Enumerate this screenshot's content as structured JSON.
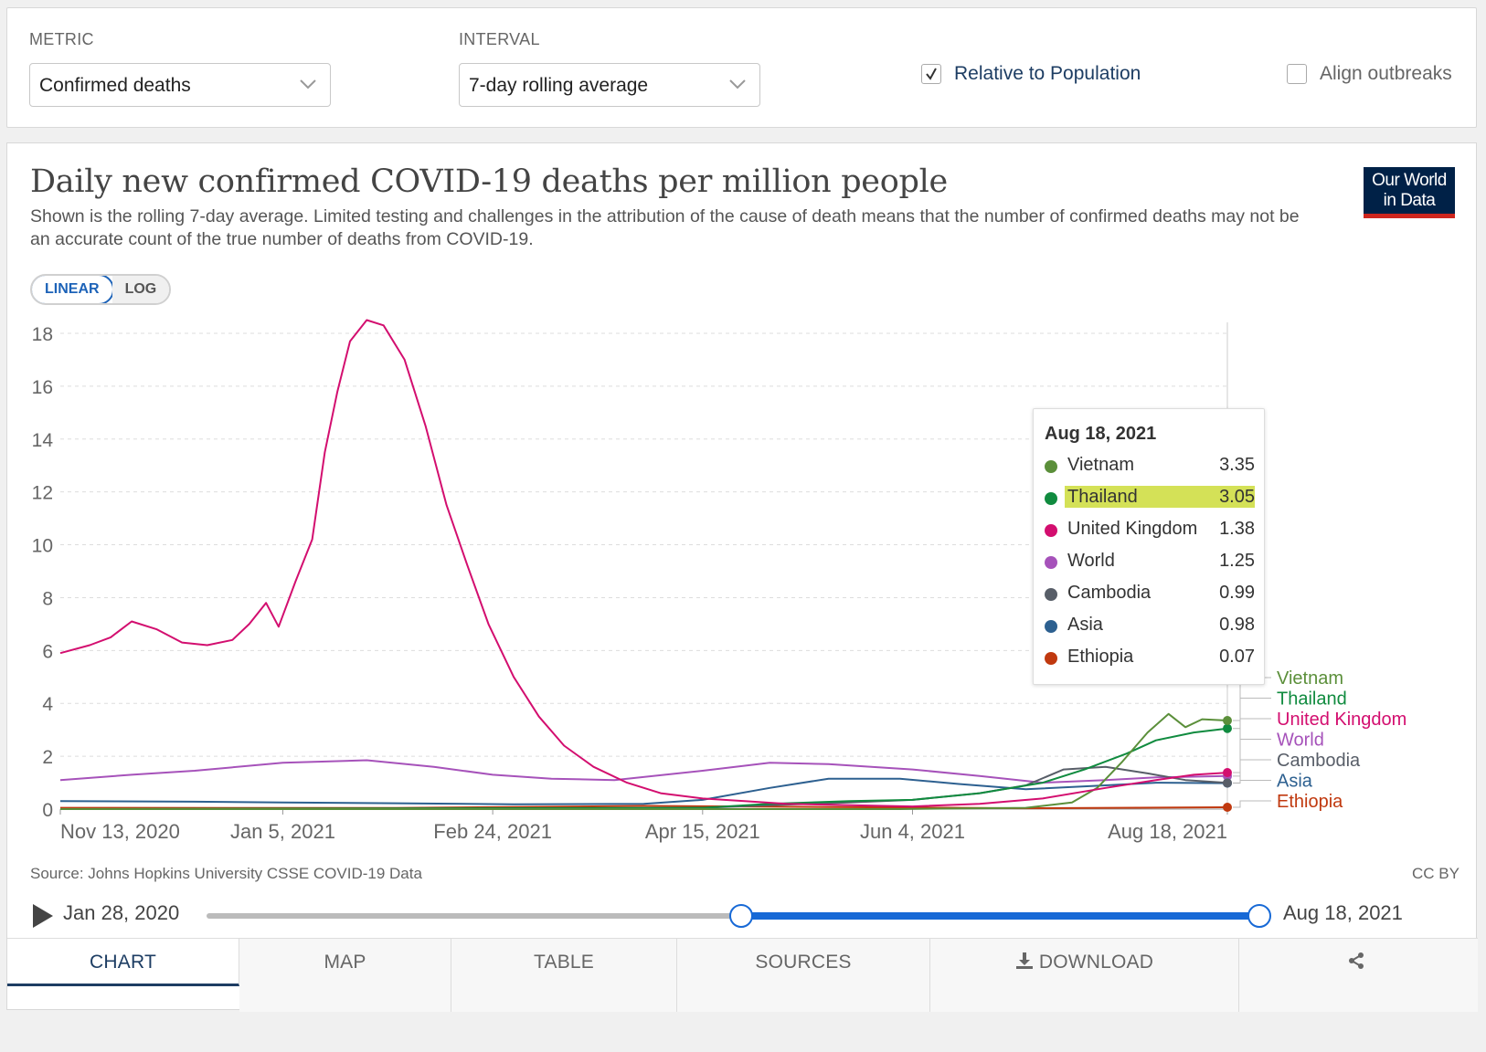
{
  "controls": {
    "metric_label": "METRIC",
    "metric_value": "Confirmed deaths",
    "interval_label": "INTERVAL",
    "interval_value": "7-day rolling average",
    "relative_label": "Relative to Population",
    "relative_checked": true,
    "align_label": "Align outbreaks",
    "align_checked": false
  },
  "header": {
    "title": "Daily new confirmed COVID-19 deaths per million people",
    "subtitle": "Shown is the rolling 7-day average. Limited testing and challenges in the attribution of the cause of death means that the number of confirmed deaths may not be an accurate count of the true number of deaths from COVID-19.",
    "logo_line1": "Our World",
    "logo_line2": "in Data"
  },
  "scale": {
    "linear": "LINEAR",
    "log": "LOG",
    "active": "linear"
  },
  "tooltip": {
    "date": "Aug 18, 2021",
    "rows": [
      {
        "name": "Vietnam",
        "value": "3.35",
        "color": "#5b8f3a"
      },
      {
        "name": "Thailand",
        "value": "3.05",
        "color": "#108b3f",
        "highlight": true
      },
      {
        "name": "United Kingdom",
        "value": "1.38",
        "color": "#d30e6f"
      },
      {
        "name": "World",
        "value": "1.25",
        "color": "#a652ba"
      },
      {
        "name": "Cambodia",
        "value": "0.99",
        "color": "#585e68"
      },
      {
        "name": "Asia",
        "value": "0.98",
        "color": "#2d6090"
      },
      {
        "name": "Ethiopia",
        "value": "0.07",
        "color": "#c0390f"
      }
    ]
  },
  "footer": {
    "source": "Source: Johns Hopkins University CSSE COVID-19 Data",
    "license": "CC BY"
  },
  "timeline": {
    "start": "Jan 28, 2020",
    "end": "Aug 18, 2021"
  },
  "tabs": [
    "CHART",
    "MAP",
    "TABLE",
    "SOURCES",
    "DOWNLOAD"
  ],
  "chart_data": {
    "type": "line",
    "title": "Daily new confirmed COVID-19 deaths per million people",
    "xlabel": "",
    "ylabel": "",
    "xlim": [
      "2020-11-13",
      "2021-08-18"
    ],
    "ylim": [
      0,
      18
    ],
    "y_ticks": [
      0,
      2,
      4,
      6,
      8,
      10,
      12,
      14,
      16,
      18
    ],
    "x_tick_labels": [
      "Nov 13, 2020",
      "Jan 5, 2021",
      "Feb 24, 2021",
      "Apr 15, 2021",
      "Jun 4, 2021",
      "Aug 18, 2021"
    ],
    "x_tick_dates": [
      "2020-11-13",
      "2021-01-05",
      "2021-02-24",
      "2021-04-15",
      "2021-06-04",
      "2021-08-18"
    ],
    "grid": "horizontal",
    "legend": "right-end labels",
    "series": [
      {
        "name": "United Kingdom",
        "color": "#d30e6f",
        "x": [
          "2020-11-13",
          "2020-11-20",
          "2020-11-25",
          "2020-11-30",
          "2020-12-06",
          "2020-12-12",
          "2020-12-18",
          "2020-12-24",
          "2020-12-28",
          "2021-01-01",
          "2021-01-04",
          "2021-01-08",
          "2021-01-12",
          "2021-01-15",
          "2021-01-18",
          "2021-01-21",
          "2021-01-25",
          "2021-01-29",
          "2021-02-03",
          "2021-02-08",
          "2021-02-13",
          "2021-02-18",
          "2021-02-23",
          "2021-03-01",
          "2021-03-07",
          "2021-03-13",
          "2021-03-20",
          "2021-03-28",
          "2021-04-05",
          "2021-04-15",
          "2021-04-25",
          "2021-05-05",
          "2021-05-20",
          "2021-06-04",
          "2021-06-20",
          "2021-07-05",
          "2021-07-20",
          "2021-08-01",
          "2021-08-10",
          "2021-08-18"
        ],
        "values": [
          5.9,
          6.2,
          6.5,
          7.1,
          6.8,
          6.3,
          6.2,
          6.4,
          7.0,
          7.8,
          6.9,
          8.6,
          10.2,
          13.5,
          15.8,
          17.7,
          18.5,
          18.3,
          17.0,
          14.5,
          11.5,
          9.2,
          7.0,
          5.0,
          3.5,
          2.4,
          1.6,
          1.0,
          0.6,
          0.4,
          0.3,
          0.2,
          0.15,
          0.1,
          0.2,
          0.4,
          0.8,
          1.1,
          1.3,
          1.38
        ]
      },
      {
        "name": "World",
        "color": "#a652ba",
        "x": [
          "2020-11-13",
          "2020-11-30",
          "2020-12-15",
          "2021-01-05",
          "2021-01-25",
          "2021-02-10",
          "2021-02-24",
          "2021-03-10",
          "2021-03-25",
          "2021-04-15",
          "2021-05-01",
          "2021-05-15",
          "2021-06-04",
          "2021-06-20",
          "2021-07-05",
          "2021-07-20",
          "2021-08-01",
          "2021-08-18"
        ],
        "values": [
          1.1,
          1.3,
          1.45,
          1.75,
          1.85,
          1.6,
          1.3,
          1.15,
          1.1,
          1.45,
          1.75,
          1.7,
          1.5,
          1.25,
          1.0,
          1.1,
          1.2,
          1.25
        ]
      },
      {
        "name": "Asia",
        "color": "#2d6090",
        "x": [
          "2020-11-13",
          "2020-12-15",
          "2021-01-05",
          "2021-02-01",
          "2021-03-01",
          "2021-04-01",
          "2021-04-15",
          "2021-05-01",
          "2021-05-15",
          "2021-06-01",
          "2021-06-15",
          "2021-07-01",
          "2021-07-20",
          "2021-08-01",
          "2021-08-18"
        ],
        "values": [
          0.3,
          0.28,
          0.25,
          0.22,
          0.18,
          0.2,
          0.35,
          0.8,
          1.15,
          1.15,
          0.95,
          0.75,
          0.9,
          1.0,
          0.98
        ]
      },
      {
        "name": "Cambodia",
        "color": "#585e68",
        "x": [
          "2020-11-13",
          "2021-03-01",
          "2021-04-15",
          "2021-05-01",
          "2021-05-20",
          "2021-06-04",
          "2021-06-20",
          "2021-07-01",
          "2021-07-10",
          "2021-07-20",
          "2021-07-30",
          "2021-08-08",
          "2021-08-18"
        ],
        "values": [
          0,
          0,
          0.05,
          0.15,
          0.25,
          0.35,
          0.6,
          0.9,
          1.5,
          1.6,
          1.35,
          1.1,
          0.99
        ]
      },
      {
        "name": "Thailand",
        "color": "#108b3f",
        "x": [
          "2020-11-13",
          "2021-04-15",
          "2021-05-01",
          "2021-05-20",
          "2021-06-04",
          "2021-06-20",
          "2021-07-05",
          "2021-07-15",
          "2021-07-25",
          "2021-08-01",
          "2021-08-10",
          "2021-08-18"
        ],
        "values": [
          0,
          0.05,
          0.2,
          0.3,
          0.35,
          0.6,
          1.0,
          1.5,
          2.1,
          2.6,
          2.9,
          3.05
        ]
      },
      {
        "name": "Vietnam",
        "color": "#5b8f3a",
        "x": [
          "2020-11-13",
          "2021-06-01",
          "2021-07-01",
          "2021-07-12",
          "2021-07-18",
          "2021-07-24",
          "2021-07-30",
          "2021-08-04",
          "2021-08-08",
          "2021-08-12",
          "2021-08-18"
        ],
        "values": [
          0,
          0,
          0.05,
          0.25,
          0.8,
          1.8,
          2.9,
          3.6,
          3.1,
          3.4,
          3.35
        ]
      },
      {
        "name": "Ethiopia",
        "color": "#c0390f",
        "x": [
          "2020-11-13",
          "2021-02-01",
          "2021-04-01",
          "2021-05-15",
          "2021-07-01",
          "2021-08-18"
        ],
        "values": [
          0.05,
          0.04,
          0.12,
          0.08,
          0.03,
          0.07
        ]
      }
    ]
  }
}
